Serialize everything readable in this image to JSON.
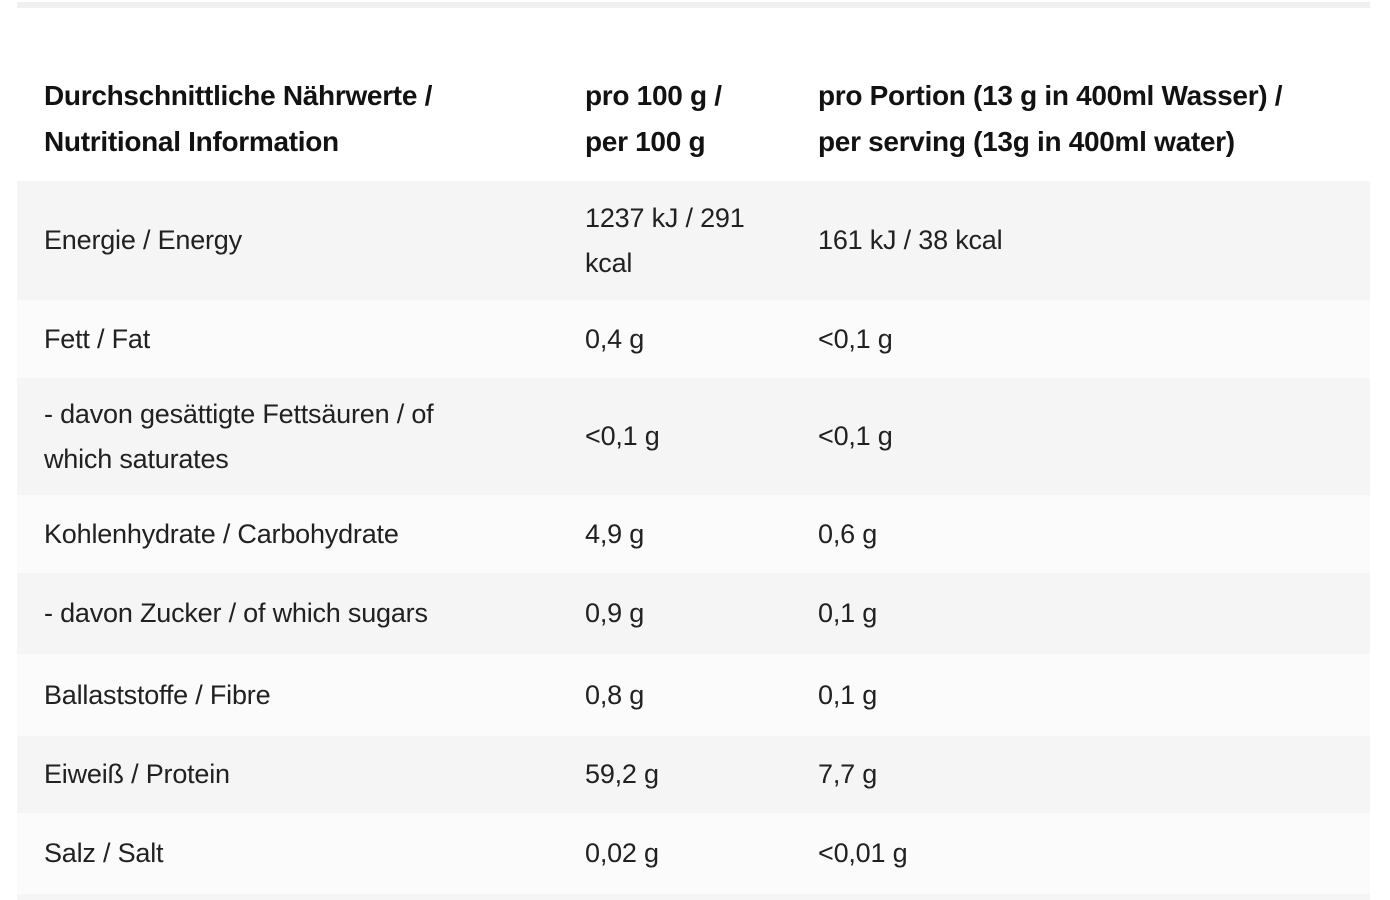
{
  "colors": {
    "row_stripe": "#f5f5f5",
    "row_light": "#fbfbfb",
    "divider": "#f0f0f0",
    "header_text": "#121212",
    "body_text": "#212121"
  },
  "table": {
    "header": {
      "nutrient_line1": "Durchschnittliche Nährwerte /",
      "nutrient_line2": "Nutritional Information",
      "per100_line1": "pro 100 g /",
      "per100_line2": "per 100 g",
      "serving_line1": "pro Portion (13 g in 400ml Wasser) /",
      "serving_line2": "per serving (13g in 400ml water)"
    },
    "rows": [
      {
        "label": "Energie / Energy",
        "per100": "1237 kJ / 291 kcal",
        "serving": "161 kJ / 38 kcal"
      },
      {
        "label": "Fett / Fat",
        "per100": "0,4 g",
        "serving": "<0,1 g"
      },
      {
        "label": "- davon gesättigte Fettsäuren / of which saturates",
        "per100": "<0,1 g",
        "serving": "<0,1 g"
      },
      {
        "label": "Kohlenhydrate / Carbohydrate",
        "per100": "4,9 g",
        "serving": "0,6 g"
      },
      {
        "label": "- davon Zucker / of which sugars",
        "per100": "0,9 g",
        "serving": "0,1 g"
      },
      {
        "label": "Ballaststoffe / Fibre",
        "per100": "0,8 g",
        "serving": "0,1 g"
      },
      {
        "label": "Eiweiß / Protein",
        "per100": "59,2 g",
        "serving": "7,7 g"
      },
      {
        "label": "Salz / Salt",
        "per100": "0,02 g",
        "serving": "<0,01 g"
      }
    ]
  }
}
